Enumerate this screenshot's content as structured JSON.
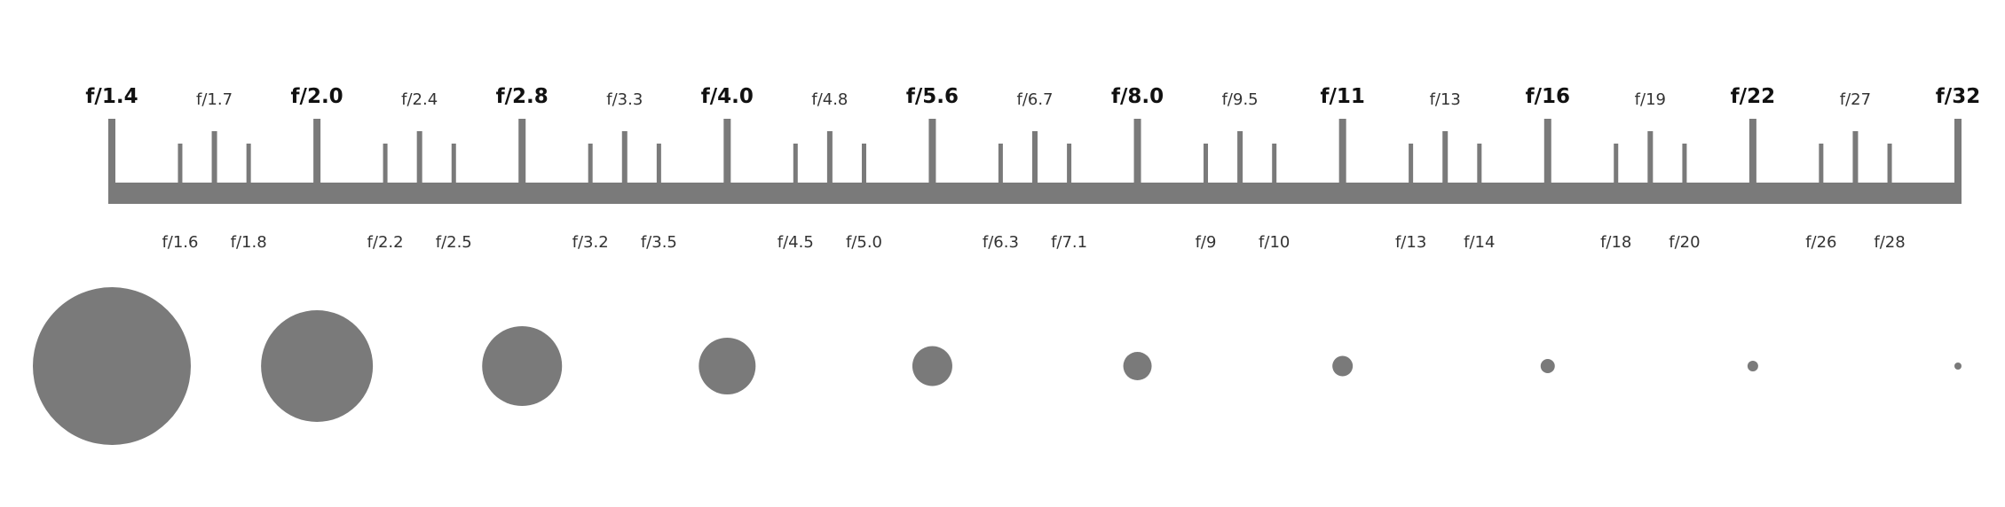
{
  "colors": {
    "mark": "#7a7a7a",
    "full_text": "#111111",
    "third_text": "#333333"
  },
  "full_stops": [
    "f/1.4",
    "f/2.0",
    "f/2.8",
    "f/4.0",
    "f/5.6",
    "f/8.0",
    "f/11",
    "f/16",
    "f/22",
    "f/32"
  ],
  "half_stops": [
    "f/1.7",
    "f/2.4",
    "f/3.3",
    "f/4.8",
    "f/6.7",
    "f/9.5",
    "f/13",
    "f/19",
    "f/27"
  ],
  "third_stops": [
    [
      "f/1.6",
      "f/1.8"
    ],
    [
      "f/2.2",
      "f/2.5"
    ],
    [
      "f/3.2",
      "f/3.5"
    ],
    [
      "f/4.5",
      "f/5.0"
    ],
    [
      "f/6.3",
      "f/7.1"
    ],
    [
      "f/9",
      "f/10"
    ],
    [
      "f/13",
      "f/14"
    ],
    [
      "f/18",
      "f/20"
    ],
    [
      "f/26",
      "f/28"
    ]
  ]
}
